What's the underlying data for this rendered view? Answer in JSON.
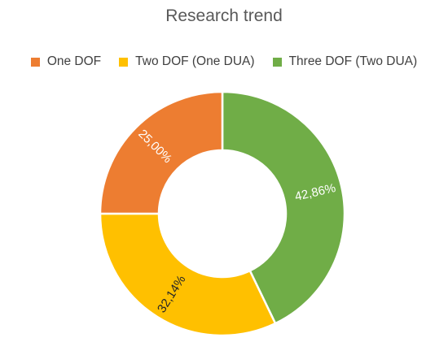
{
  "chart_data": {
    "type": "doughnut",
    "title": "Research trend",
    "legend_position": "top",
    "labels": [
      "One DOF",
      "Two DOF (One DUA)",
      "Three DOF (Two DUA)"
    ],
    "values": [
      25.0,
      32.14,
      42.86
    ],
    "data_labels": [
      "25,00%",
      "32,14%",
      "42,86%"
    ],
    "colors": [
      "#ED7D31",
      "#FFC000",
      "#70AD47"
    ],
    "label_colors": [
      "#ffffff",
      "#262626",
      "#ffffff"
    ]
  }
}
